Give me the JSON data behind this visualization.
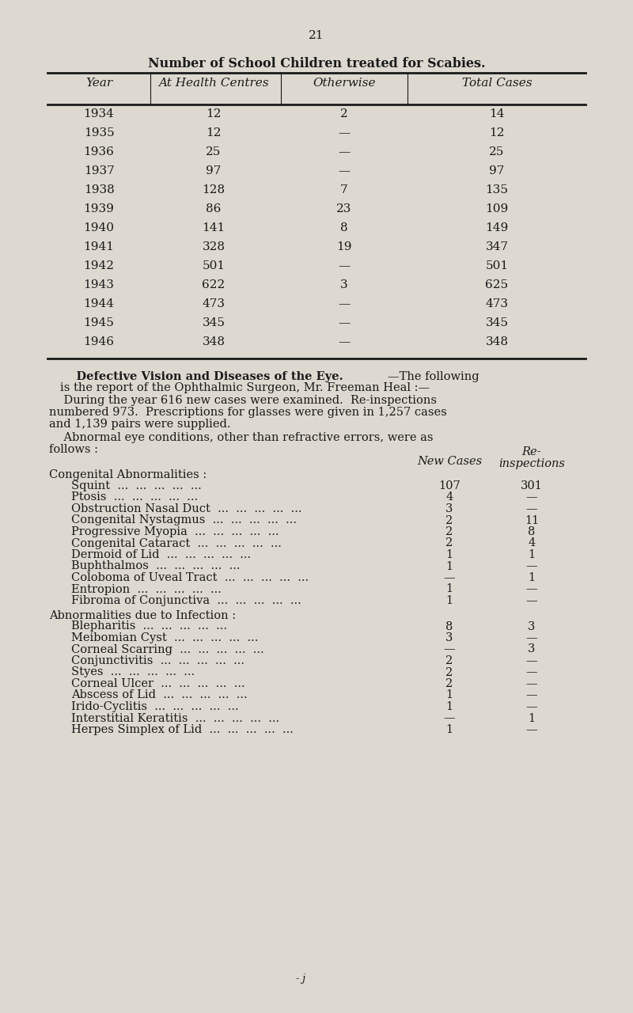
{
  "page_number": "21",
  "bg_color": "#ddd9d0",
  "text_color": "#1a1a1a",
  "table1_title": "Number of School Children treated for Scabies.",
  "table1_headers": [
    "Year",
    "At Health Centres",
    "Otherwise",
    "Total Cases"
  ],
  "table1_rows": [
    [
      "1934",
      "12",
      "2",
      "14"
    ],
    [
      "1935",
      "12",
      "—",
      "12"
    ],
    [
      "1936",
      "25",
      "—",
      "25"
    ],
    [
      "1937",
      "97",
      "—",
      "97"
    ],
    [
      "1938",
      "128",
      "7",
      "135"
    ],
    [
      "1939",
      "86",
      "23",
      "109"
    ],
    [
      "1940",
      "141",
      "8",
      "149"
    ],
    [
      "1941",
      "328",
      "19",
      "347"
    ],
    [
      "1942",
      "501",
      "—",
      "501"
    ],
    [
      "1943",
      "622",
      "3",
      "625"
    ],
    [
      "1944",
      "473",
      "—",
      "473"
    ],
    [
      "1945",
      "345",
      "—",
      "345"
    ],
    [
      "1946",
      "348",
      "—",
      "348"
    ]
  ],
  "dv_heading_smallcaps": "Defective Vision and Diseases of the Eye.",
  "dv_line1_rest": "—The following is the report of the Ophthalmic Surgeon, Mr. Freeman Heal :—",
  "dv_para2_lines": [
    "    During the year 616 new cases were examined.  Re-inspections",
    "numbered 973.  Prescriptions for glasses were given in 1,257 cases",
    "and 1,139 pairs were supplied."
  ],
  "dv_para3_lines": [
    "    Abnormal eye conditions, other than refractive errors, were as",
    "follows :"
  ],
  "section1_header": "Congenital Abnormalities :",
  "section1_rows": [
    [
      "Squint",
      "107",
      "301"
    ],
    [
      "Ptosis",
      "4",
      "—"
    ],
    [
      "Obstruction Nasal Duct",
      "3",
      "—"
    ],
    [
      "Congenital Nystagmus",
      "2",
      "11"
    ],
    [
      "Progressive Myopia",
      "2",
      "8"
    ],
    [
      "Congenital Cataract",
      "2",
      "4"
    ],
    [
      "Dermoid of Lid",
      "1",
      "1"
    ],
    [
      "Buphthalmos",
      "1",
      "—"
    ],
    [
      "Coloboma of Uveal Tract",
      "—",
      "1"
    ],
    [
      "Entropion",
      "1",
      "—"
    ],
    [
      "Fibroma of Conjunctiva",
      "1",
      "—"
    ]
  ],
  "section2_header": "Abnormalities due to Infection :",
  "section2_rows": [
    [
      "Blepharitis",
      "8",
      "3"
    ],
    [
      "Meibomian Cyst",
      "3",
      "—"
    ],
    [
      "Corneal Scarring",
      "—",
      "3"
    ],
    [
      "Conjunctivitis",
      "2",
      "—"
    ],
    [
      "Styes",
      "2",
      "—"
    ],
    [
      "Corneal Ulcer",
      "2",
      "—"
    ],
    [
      "Abscess of Lid",
      "1",
      "—"
    ],
    [
      "Irido-Cyclitis",
      "1",
      "—"
    ],
    [
      "Interstitial Keratitis",
      "—",
      "1"
    ],
    [
      "Herpes Simplex of Lid",
      "1",
      "—"
    ]
  ],
  "footer_text": "- j"
}
